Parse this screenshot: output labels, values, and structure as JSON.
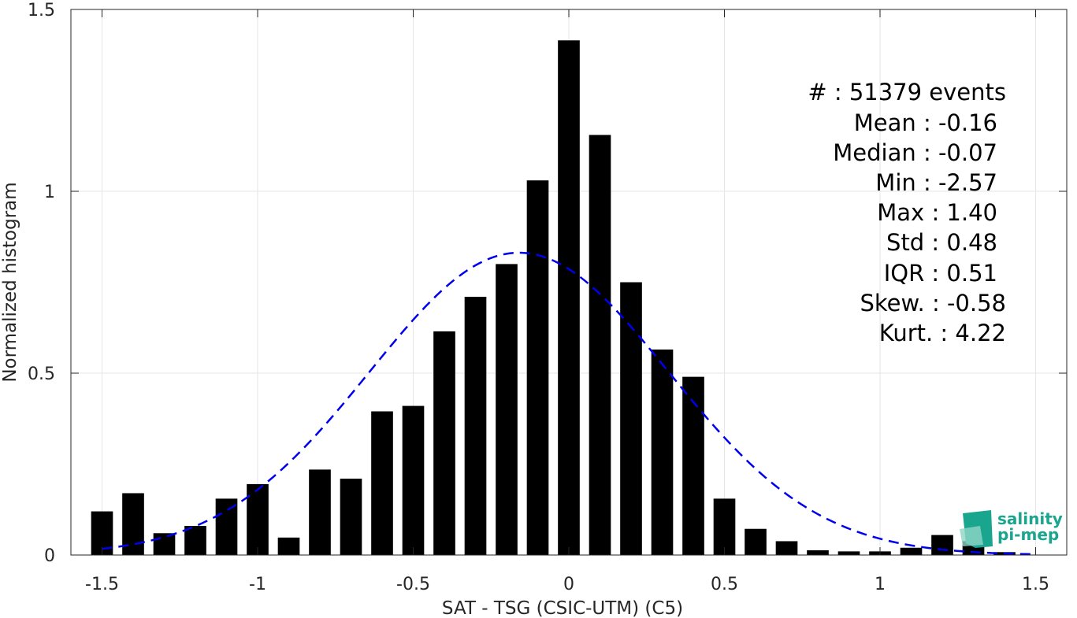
{
  "chart_data": {
    "type": "bar",
    "xlabel": "SAT - TSG (CSIC-UTM) (C5)",
    "ylabel": "Normalized histogram",
    "xlim": [
      -1.6,
      1.6
    ],
    "ylim": [
      0,
      1.5
    ],
    "xticks": [
      -1.5,
      -1,
      -0.5,
      0,
      0.5,
      1,
      1.5
    ],
    "xtick_labels": [
      "-1.5",
      "-1",
      "-0.5",
      "0",
      "0.5",
      "1",
      "1.5"
    ],
    "yticks": [
      0,
      0.5,
      1,
      1.5
    ],
    "ytick_labels": [
      "0",
      "0.5",
      "1",
      "1.5"
    ],
    "grid": true,
    "bar_color": "#000000",
    "bar_width": 0.07,
    "bins": [
      {
        "x": -1.5,
        "y": 0.12
      },
      {
        "x": -1.4,
        "y": 0.17
      },
      {
        "x": -1.3,
        "y": 0.06
      },
      {
        "x": -1.2,
        "y": 0.08
      },
      {
        "x": -1.1,
        "y": 0.155
      },
      {
        "x": -1.0,
        "y": 0.195
      },
      {
        "x": -0.9,
        "y": 0.048
      },
      {
        "x": -0.8,
        "y": 0.235
      },
      {
        "x": -0.7,
        "y": 0.21
      },
      {
        "x": -0.6,
        "y": 0.395
      },
      {
        "x": -0.5,
        "y": 0.41
      },
      {
        "x": -0.4,
        "y": 0.615
      },
      {
        "x": -0.3,
        "y": 0.71
      },
      {
        "x": -0.2,
        "y": 0.8
      },
      {
        "x": -0.1,
        "y": 1.03
      },
      {
        "x": 0.0,
        "y": 1.415
      },
      {
        "x": 0.1,
        "y": 1.155
      },
      {
        "x": 0.2,
        "y": 0.75
      },
      {
        "x": 0.3,
        "y": 0.565
      },
      {
        "x": 0.4,
        "y": 0.49
      },
      {
        "x": 0.5,
        "y": 0.155
      },
      {
        "x": 0.6,
        "y": 0.072
      },
      {
        "x": 0.7,
        "y": 0.038
      },
      {
        "x": 0.8,
        "y": 0.013
      },
      {
        "x": 0.9,
        "y": 0.01
      },
      {
        "x": 1.0,
        "y": 0.01
      },
      {
        "x": 1.1,
        "y": 0.02
      },
      {
        "x": 1.2,
        "y": 0.055
      },
      {
        "x": 1.3,
        "y": 0.038
      },
      {
        "x": 1.4,
        "y": 0.008
      }
    ],
    "fit_curve": {
      "style": "dashed",
      "color": "#0000ee",
      "mean": -0.16,
      "std": 0.48,
      "x_range": [
        -1.5,
        1.5
      ]
    },
    "stats": [
      {
        "label": "#  ",
        "value": "51379 events"
      },
      {
        "label": "Mean",
        "value": "-0.16"
      },
      {
        "label": "Median",
        "value": "-0.07"
      },
      {
        "label": "Min",
        "value": "-2.57"
      },
      {
        "label": "Max",
        "value": "1.40"
      },
      {
        "label": "Std",
        "value": "0.48"
      },
      {
        "label": "IQR",
        "value": "0.51"
      },
      {
        "label": "Skew.",
        "value": "-0.58"
      },
      {
        "label": "Kurt.",
        "value": "4.22"
      }
    ]
  },
  "stats_lines": [
    "#  : 51379 events",
    "Mean : -0.16",
    "Median : -0.07",
    "Min : -2.57",
    "Max : 1.40",
    "Std : 0.48",
    "IQR : 0.51",
    "Skew. : -0.58",
    "Kurt. : 4.22"
  ],
  "logo": {
    "line1": "salinity",
    "line2": "pi-mep",
    "color": "#1aa58f"
  }
}
